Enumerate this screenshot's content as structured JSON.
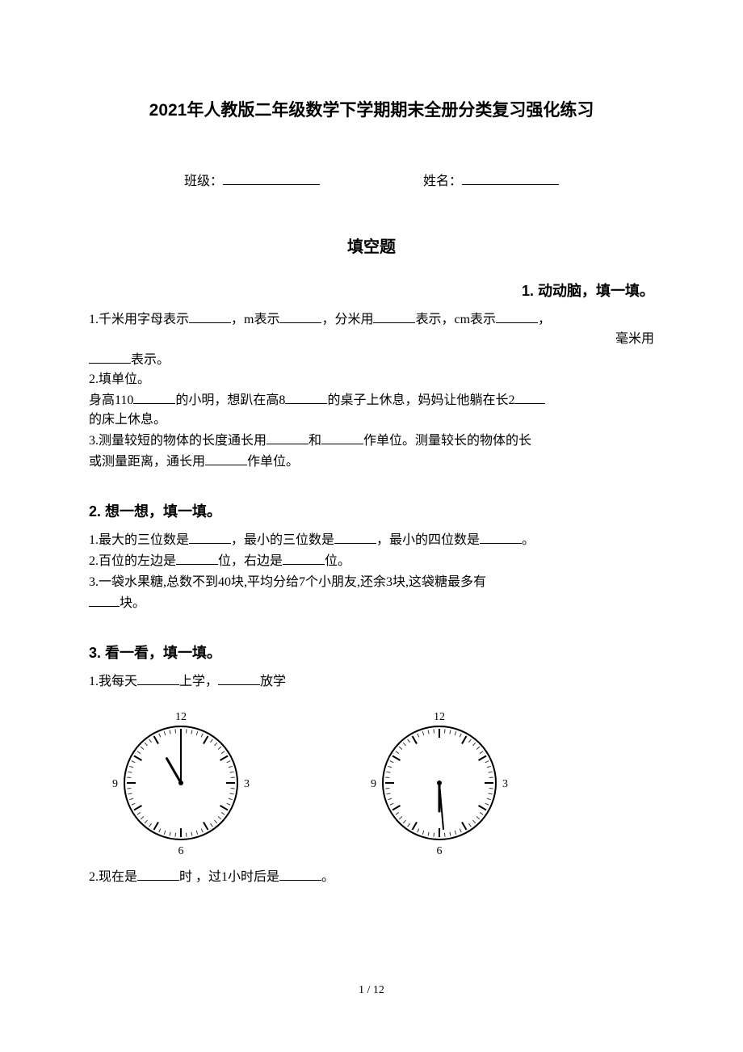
{
  "title": "2021年人教版二年级数学下学期期末全册分类复习强化练习",
  "form": {
    "class_label": "班级：",
    "name_label": "姓名："
  },
  "section_title": "填空题",
  "q1": {
    "heading": "1. 动动脑，填一填。",
    "line1_a": "1.千米用字母表示",
    "line1_b": "，m表示",
    "line1_c": "，分米用",
    "line1_d": "表示，cm表示",
    "line1_e": "，",
    "line1_right": "毫米用",
    "line2_a": "表示。",
    "line3_a": "2.填单位。",
    "line4_a": "身高110",
    "line4_b": "的小明，想趴在高8",
    "line4_c": "的桌子上休息，妈妈让他躺在长2",
    "line5_a": "的床上休息。",
    "line6_a": "3.测量较短的物体的长度通长用",
    "line6_b": "和",
    "line6_c": "作单位。测量较长的物体的长",
    "line7_a": "或测量距离，通长用",
    "line7_b": "作单位。"
  },
  "q2": {
    "heading": "2. 想一想，填一填。",
    "line1_a": "1.最大的三位数是",
    "line1_b": "，最小的三位数是",
    "line1_c": "，最小的四位数是",
    "line1_d": "。",
    "line2_a": "2.百位的左边是",
    "line2_b": "位，右边是",
    "line2_c": "位。",
    "line3_a": "3.一袋水果糖,总数不到40块,平均分给7个小朋友,还余3块,这袋糖最多有",
    "line4_a": "块。"
  },
  "q3": {
    "heading": "3. 看一看，填一填。",
    "line1_a": "1.我每天",
    "line1_b": "上学，",
    "line1_c": "放学",
    "line2_a": "2.现在是",
    "line2_b": "时 ，过1小时后是",
    "line2_c": "。"
  },
  "clock1": {
    "numerals": {
      "12": "12",
      "3": "3",
      "6": "6",
      "9": "9"
    },
    "hour_hand_angle": -30,
    "minute_hand_angle": 0,
    "face_radius": 70,
    "numeral_fontsize": 14,
    "stroke_color": "#000000",
    "tick_color": "#333333"
  },
  "clock2": {
    "numerals": {
      "12": "12",
      "3": "3",
      "6": "6",
      "9": "9"
    },
    "hour_hand_angle": 180,
    "minute_hand_angle": 175,
    "face_radius": 70,
    "numeral_fontsize": 14,
    "stroke_color": "#000000",
    "tick_color": "#333333"
  },
  "page_number": "1 / 12"
}
